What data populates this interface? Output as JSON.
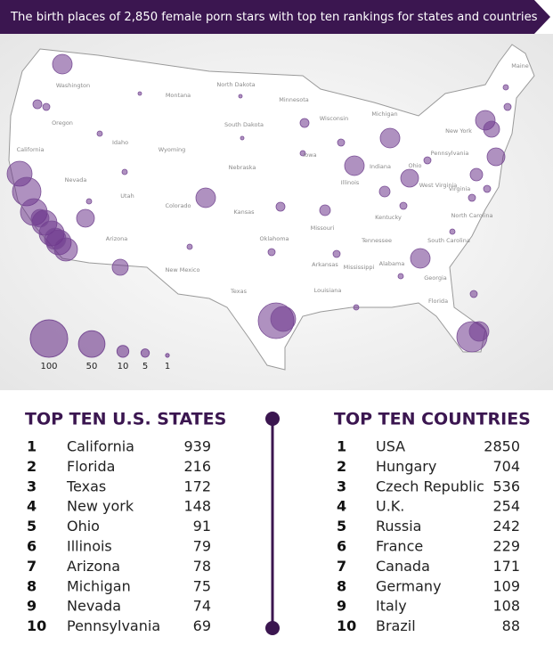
{
  "header": {
    "title": "The birth places of 2,850 female porn stars with top ten rankings for states and countries"
  },
  "map": {
    "state_labels": [
      "Washington",
      "Oregon",
      "California",
      "Nevada",
      "Idaho",
      "Montana",
      "Wyoming",
      "Utah",
      "Arizona",
      "Colorado",
      "New Mexico",
      "Texas",
      "North Dakota",
      "South Dakota",
      "Nebraska",
      "Kansas",
      "Oklahoma",
      "Minnesota",
      "Iowa",
      "Missouri",
      "Arkansas",
      "Louisiana",
      "Wisconsin",
      "Illinois",
      "Michigan",
      "Indiana",
      "Ohio",
      "Kentucky",
      "Tennessee",
      "Mississippi",
      "Alabama",
      "Georgia",
      "Florida",
      "South Carolina",
      "North Carolina",
      "Virginia",
      "West Virginia",
      "Pennsylvania",
      "New York",
      "Maine"
    ]
  },
  "legend": {
    "values": [
      100,
      50,
      10,
      5,
      1
    ]
  },
  "tables": [
    {
      "title": "TOP TEN U.S. STATES",
      "rows": [
        [
          1,
          "California",
          939
        ],
        [
          2,
          "Florida",
          216
        ],
        [
          3,
          "Texas",
          172
        ],
        [
          4,
          "New york",
          148
        ],
        [
          5,
          "Ohio",
          91
        ],
        [
          6,
          "Illinois",
          79
        ],
        [
          7,
          "Arizona",
          78
        ],
        [
          8,
          "Michigan",
          75
        ],
        [
          9,
          "Nevada",
          74
        ],
        [
          10,
          "Pennsylvania",
          69
        ]
      ]
    },
    {
      "title": "TOP TEN COUNTRIES",
      "rows": [
        [
          1,
          "USA",
          2850
        ],
        [
          2,
          "Hungary",
          704
        ],
        [
          3,
          "Czech Republic",
          536
        ],
        [
          4,
          "U.K.",
          254
        ],
        [
          5,
          "Russia",
          242
        ],
        [
          6,
          "France",
          229
        ],
        [
          7,
          "Canada",
          171
        ],
        [
          8,
          "Germany",
          109
        ],
        [
          9,
          "Italy",
          108
        ],
        [
          10,
          "Brazil",
          88
        ]
      ]
    }
  ]
}
